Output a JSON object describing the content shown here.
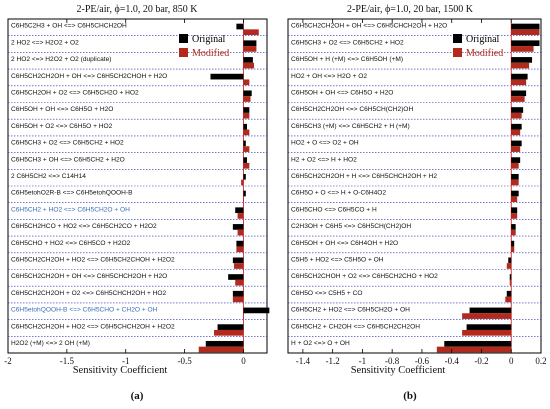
{
  "chart_data": [
    {
      "type": "bar",
      "orientation": "horizontal",
      "title": "2-PE/air, ϕ=1.0, 20 bar, 850 K",
      "xlabel": "Sensitivity Coefficient",
      "sublabel": "(a)",
      "xlim": [
        -2,
        0.2
      ],
      "xticks": [
        -2,
        -1.5,
        -1,
        -0.5,
        0
      ],
      "xtick_labels": [
        "-2",
        "-1.5",
        "-1",
        "-0.5",
        "0"
      ],
      "legend": {
        "position": "top-right",
        "entries": [
          "Original",
          "Modified"
        ]
      },
      "highlighted_categories": [
        11,
        17
      ],
      "categories": [
        "C6H5C2H3 + OH <=> C6H5CHCH2OH",
        "2 HO2 <=> H2O2 + O2",
        "2 HO2 <=> H2O2 + O2 (duplicate)",
        "C6H5CH2CH2OH + OH <=> C6H5CH2CHOH + H2O",
        "C6H5CH2OH + O2 <=> C6H5CH2O + HO2",
        "C6H5OH + OH <=> C6H5O + H2O",
        "C6H5OH + O2 <=> C6H5O + HO2",
        "C6H5CH3 + O2 <=> C6H5CH2 + HO2",
        "C6H5CH3 + OH <=> C6H5CH2 + H2O",
        "2 C6H5CH2 <=> C14H14",
        "C6H5etohO2R-B <=> C6H5etohQOOH-B",
        "C6H5CH2 + HO2 <=> C6H5CH2O + OH",
        "C6H5CH2HCO + HO2 <=> C6H5CH2CO + H2O2",
        "C6H5CHO + HO2 <=> C6H5CO + H2O2",
        "C6H5CH2CH2OH + HO2 <=> C6H5CH2CHOH + H2O2",
        "C6H5CH2CH2OH + OH <=> C6H5CHCH2OH + H2O",
        "C6H5CH2CH2OH + O2 <=> C6H5CHCH2OH + HO2",
        "C6H5etohQOOH-B <=> C6H5CHO + CH2O + OH",
        "C6H5CH2CH2OH + HO2 <=> C6H5CHCH2OH + H2O2",
        "H2O2 (+M) <=> 2 OH (+M)"
      ],
      "series": [
        {
          "name": "Original",
          "color": "#000000",
          "values": [
            -0.06,
            0.11,
            0.08,
            -0.28,
            0.07,
            0.05,
            0.03,
            0.02,
            0.03,
            0.02,
            0.02,
            -0.07,
            -0.09,
            -0.06,
            -0.09,
            -0.13,
            -0.09,
            0.22,
            -0.22,
            -0.32
          ]
        },
        {
          "name": "Modified",
          "color": "#b22a1c",
          "values": [
            0.13,
            0.11,
            0.09,
            0.05,
            0.06,
            0.05,
            0.05,
            0.05,
            0.05,
            -0.02,
            0.0,
            -0.05,
            -0.05,
            -0.06,
            -0.08,
            -0.07,
            -0.09,
            0.0,
            -0.25,
            -0.38
          ]
        }
      ]
    },
    {
      "type": "bar",
      "orientation": "horizontal",
      "title": "2-PE/air, ϕ=1.0, 20 bar, 1500 K",
      "xlabel": "Sensitivity Coefficient",
      "sublabel": "(b)",
      "xlim": [
        -1.5,
        0.2
      ],
      "xticks": [
        -1.4,
        -1.2,
        -1,
        -0.8,
        -0.6,
        -0.4,
        -0.2,
        0,
        0.2
      ],
      "xtick_labels": [
        "-1.4",
        "-1.2",
        "-1",
        "-0.8",
        "-0.6",
        "-0.4",
        "-0.2",
        "0",
        "0.2"
      ],
      "legend": {
        "position": "top-right",
        "entries": [
          "Original",
          "Modified"
        ]
      },
      "categories": [
        "C6H5CH2CH2OH + OH <=> C6H5CHCH2OH + H2O",
        "C6H5CH3 + O2 <=> C6H5CH2 + HO2",
        "C6H5OH + H (+M) <=> C6H5OH (+M)",
        "HO2 + OH <=> H2O + O2",
        "C6H5OH + OH <=> C6H5O + H2O",
        "C6H5CH2CH2OH <=> C6H5CH(CH2)OH",
        "C6H5CH3 (+M) <=> C6H5CH2 + H (+M)",
        "HO2 + O <=> O2 + OH",
        "H2 + O2 <=> H + HO2",
        "C6H5CH2CH2OH + H <=> C6H5CHCH2OH + H2",
        "C6H5O + O <=> H + O-C6H4O2",
        "C6H5CHO <=> C6H5CO + H",
        "C2H3OH + C6H5 <=> C6H5CH(CH2)OH",
        "C6H5OH + OH <=> C6H4OH + H2O",
        "C5H5 + HO2 <=> C5H5O + OH",
        "C6H5CH2CHOH + O2 <=> C6H5CH2CHO + HO2",
        "C6H5O <=> C5H5 + CO",
        "C6H5CH2 + HO2 <=> C6H5CH2O + OH",
        "C6H5CH2 + CH2OH <=> C6H5CH2CH2OH",
        "H + O2 <=> O + OH"
      ],
      "series": [
        {
          "name": "Original",
          "color": "#000000",
          "values": [
            0.19,
            0.19,
            0.14,
            0.11,
            0.1,
            0.08,
            0.07,
            0.07,
            0.06,
            0.05,
            0.05,
            0.04,
            0.03,
            0.02,
            -0.02,
            -0.01,
            -0.03,
            -0.28,
            -0.3,
            -0.45
          ]
        },
        {
          "name": "Modified",
          "color": "#b22a1c",
          "values": [
            0.19,
            0.15,
            0.12,
            0.1,
            0.09,
            0.07,
            0.06,
            0.06,
            0.05,
            0.05,
            0.04,
            0.04,
            0.03,
            0.02,
            -0.03,
            -0.01,
            -0.04,
            -0.33,
            -0.33,
            -0.5
          ]
        }
      ]
    }
  ]
}
